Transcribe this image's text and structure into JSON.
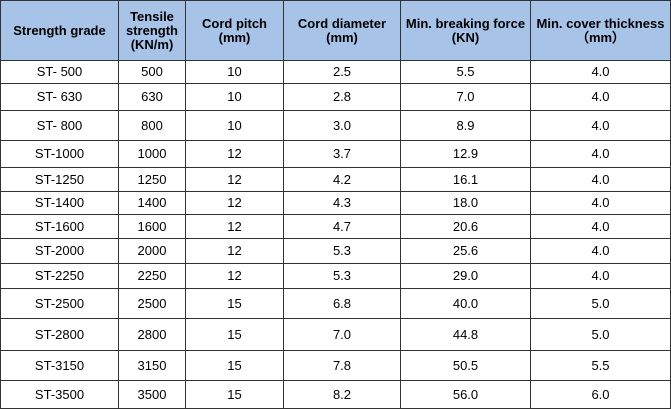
{
  "table": {
    "header": [
      "Strength grade",
      "Tensile strength (KN/m)",
      "Cord pitch (mm)",
      "Cord diameter (mm)",
      "Min. breaking force (KN)",
      "Min. cover thickness （mm）"
    ],
    "rows": [
      [
        "ST- 500",
        "500",
        "10",
        "2.5",
        "5.5",
        "4.0"
      ],
      [
        "ST- 630",
        "630",
        "10",
        "2.8",
        "7.0",
        "4.0"
      ],
      [
        "ST- 800",
        "800",
        "10",
        "3.0",
        "8.9",
        "4.0"
      ],
      [
        "ST-1000",
        "1000",
        "12",
        "3.7",
        "12.9",
        "4.0"
      ],
      [
        "ST-1250",
        "1250",
        "12",
        "4.2",
        "16.1",
        "4.0"
      ],
      [
        "ST-1400",
        "1400",
        "12",
        "4.3",
        "18.0",
        "4.0"
      ],
      [
        "ST-1600",
        "1600",
        "12",
        "4.7",
        "20.6",
        "4.0"
      ],
      [
        "ST-2000",
        "2000",
        "12",
        "5.3",
        "25.6",
        "4.0"
      ],
      [
        "ST-2250",
        "2250",
        "12",
        "5.3",
        "29.0",
        "4.0"
      ],
      [
        "ST-2500",
        "2500",
        "15",
        "6.8",
        "40.0",
        "5.0"
      ],
      [
        "ST-2800",
        "2800",
        "15",
        "7.0",
        "44.8",
        "5.0"
      ],
      [
        "ST-3150",
        "3150",
        "15",
        "7.8",
        "50.5",
        "5.5"
      ],
      [
        "ST-3500",
        "3500",
        "15",
        "8.2",
        "56.0",
        "6.0"
      ]
    ]
  }
}
